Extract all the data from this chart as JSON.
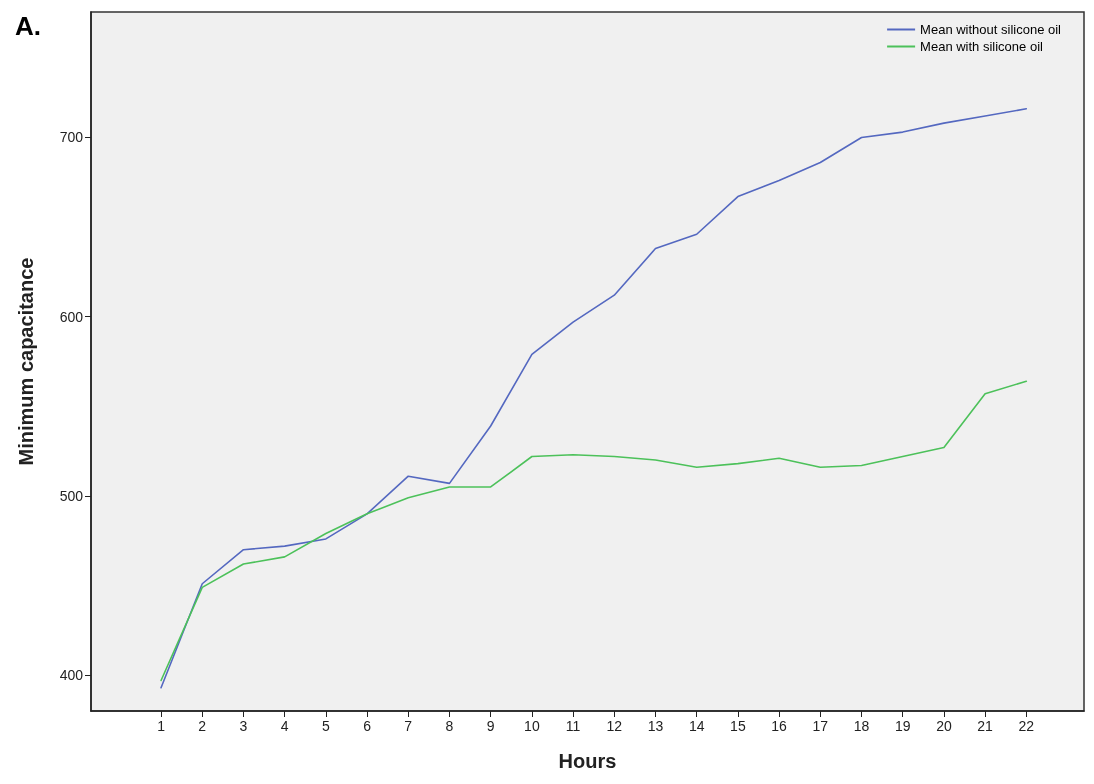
{
  "chart_data": {
    "type": "line",
    "title": "A.",
    "xlabel": "Hours",
    "ylabel": "Minimum capacitance",
    "x": [
      1,
      2,
      3,
      4,
      5,
      6,
      7,
      8,
      9,
      10,
      11,
      12,
      13,
      14,
      15,
      16,
      17,
      18,
      19,
      20,
      21,
      22
    ],
    "xlim": [
      -0.7,
      23.4
    ],
    "xticks": [
      1,
      2,
      3,
      4,
      5,
      6,
      7,
      8,
      9,
      10,
      11,
      12,
      13,
      14,
      15,
      16,
      17,
      18,
      19,
      20,
      21,
      22
    ],
    "ylim": [
      380,
      770
    ],
    "yticks": [
      400,
      500,
      600,
      700
    ],
    "series": [
      {
        "name": "Mean without silicone oil",
        "color": "#5468c0",
        "values": [
          393,
          451,
          470,
          472,
          476,
          490,
          511,
          507,
          539,
          579,
          597,
          612,
          638,
          646,
          667,
          676,
          686,
          700,
          703,
          708,
          712,
          716
        ]
      },
      {
        "name": "Mean with silicone oil",
        "color": "#4cc15a",
        "values": [
          397,
          449,
          462,
          466,
          479,
          490,
          499,
          505,
          505,
          522,
          523,
          522,
          520,
          516,
          518,
          521,
          516,
          517,
          522,
          527,
          557,
          564
        ]
      }
    ],
    "legend": "top right",
    "grid": false,
    "marker": "none",
    "line_style": "solid"
  }
}
